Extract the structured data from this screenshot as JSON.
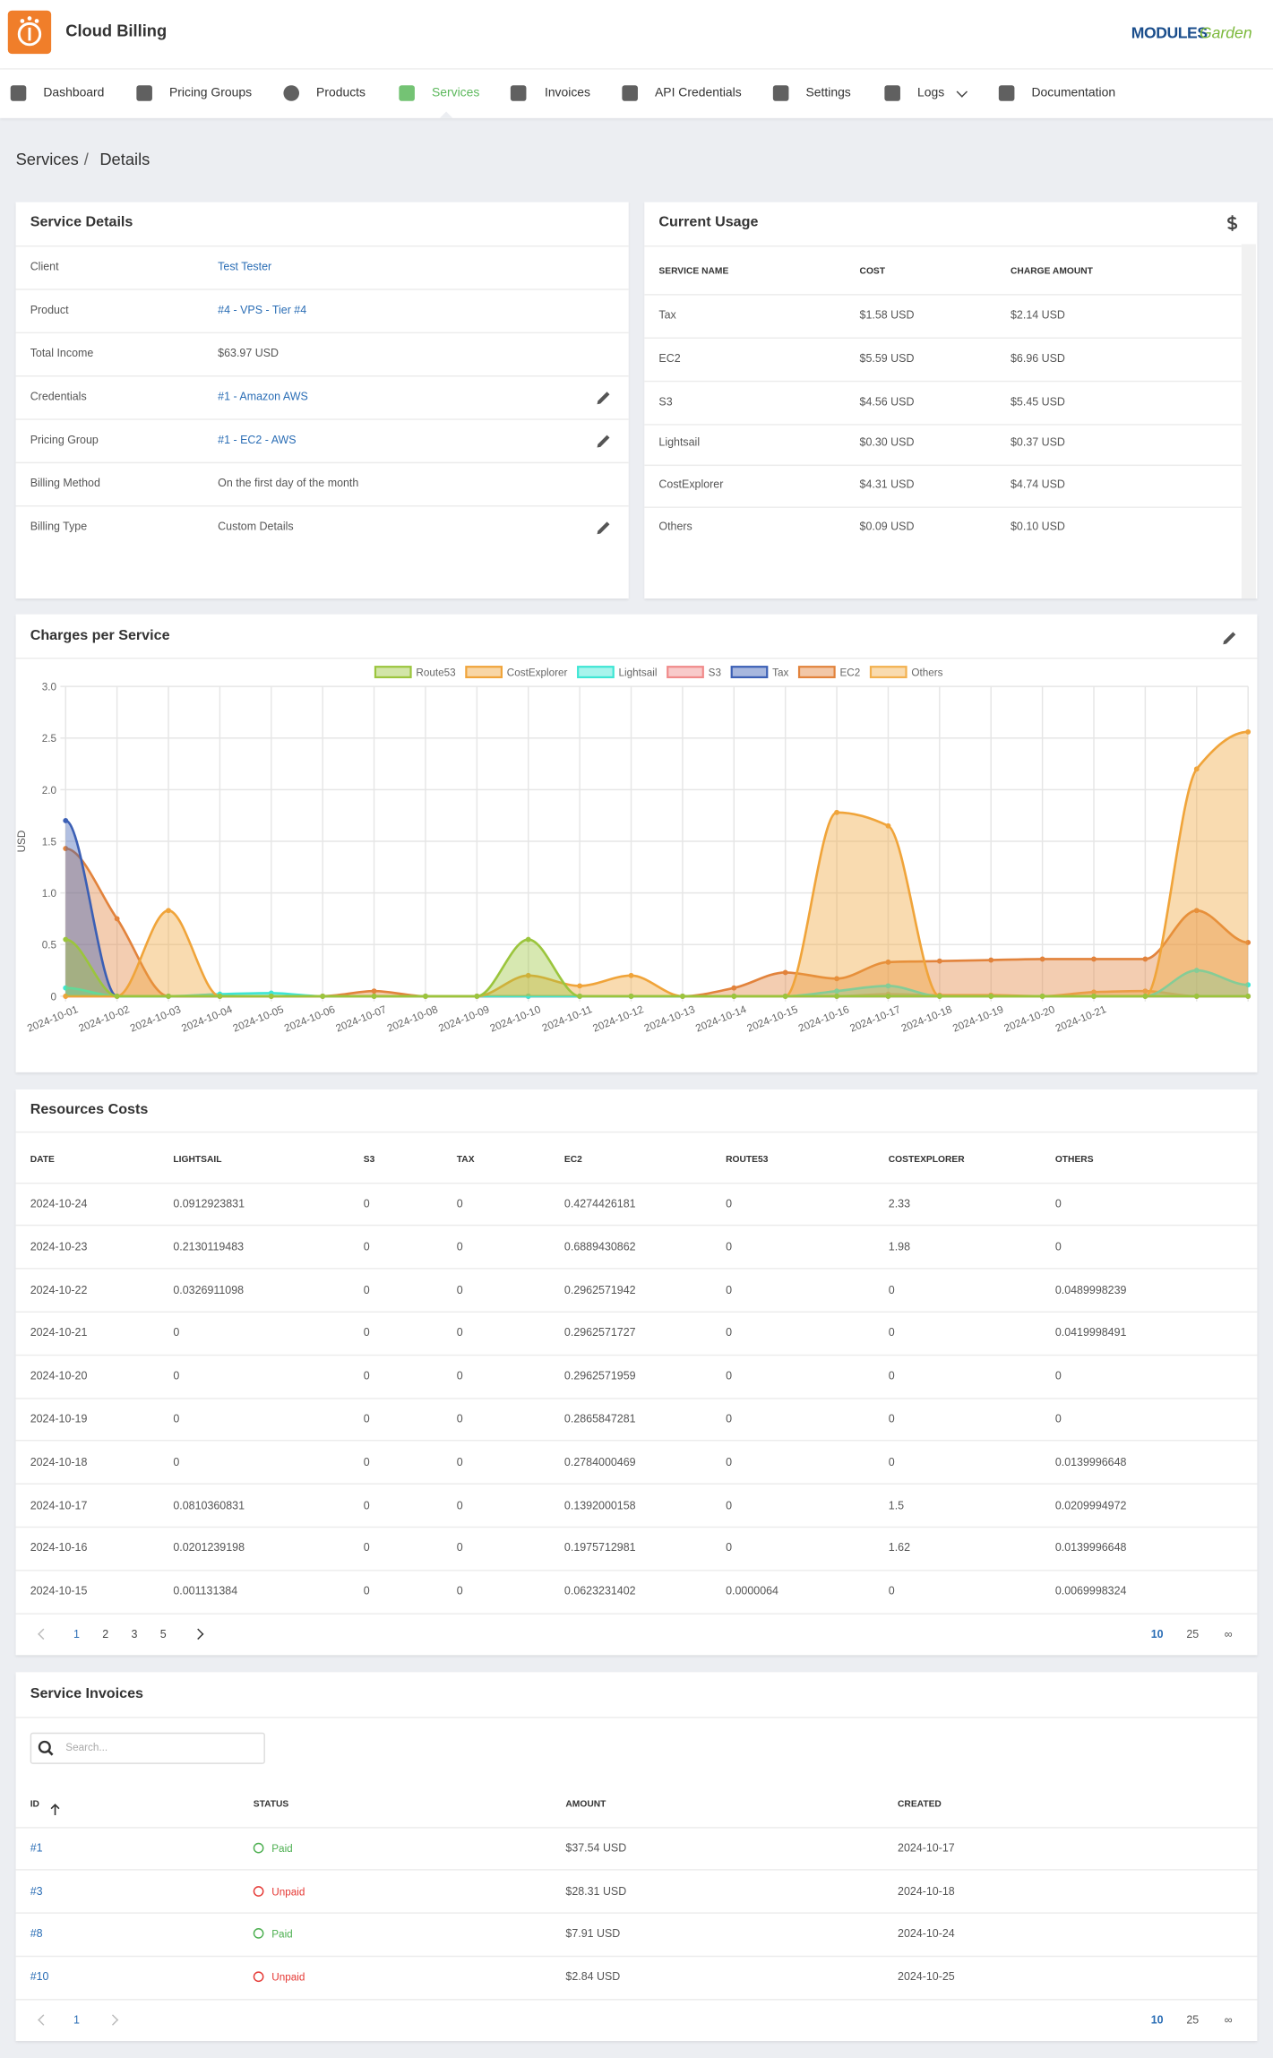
{
  "header": {
    "title": "Cloud Billing",
    "brand": [
      "MODULES",
      "Garden"
    ]
  },
  "nav": {
    "items": [
      "Dashboard",
      "Pricing Groups",
      "Products",
      "Services",
      "Invoices",
      "API Credentials",
      "Settings",
      "Logs",
      "Documentation"
    ],
    "active": 3
  },
  "breadcrumb": {
    "items": [
      "Services",
      "Details"
    ],
    "separator": "/"
  },
  "service_details": {
    "title": "Service Details",
    "rows": [
      [
        "Client",
        "Test Tester"
      ],
      [
        "Product",
        "#4 - VPS - Tier #4"
      ],
      [
        "Total Income",
        "$63.97 USD"
      ],
      [
        "Credentials",
        "#1 - Amazon AWS"
      ],
      [
        "Pricing Group",
        "#1 - EC2 - AWS"
      ],
      [
        "Billing Method",
        "On the first day of the month"
      ],
      [
        "Billing Type",
        "Custom Details"
      ]
    ]
  },
  "current_usage": {
    "title": "Current Usage",
    "columns": [
      "SERVICE NAME",
      "COST",
      "CHARGE AMOUNT"
    ],
    "rows": [
      [
        "Tax",
        "$1.58 USD",
        "$2.14 USD"
      ],
      [
        "EC2",
        "$5.59 USD",
        "$6.96 USD"
      ],
      [
        "S3",
        "$4.56 USD",
        "$5.45 USD"
      ],
      [
        "Lightsail",
        "$0.30 USD",
        "$0.37 USD"
      ],
      [
        "CostExplorer",
        "$4.31 USD",
        "$4.74 USD"
      ],
      [
        "Others",
        "$0.09 USD",
        "$0.10 USD"
      ]
    ]
  },
  "chart_data": {
    "type": "area",
    "title": "Charges per Service",
    "y_label": "USD",
    "categories": [
      "2024-10-01",
      "2024-10-02",
      "2024-10-03",
      "2024-10-04",
      "2024-10-05",
      "2024-10-06",
      "2024-10-07",
      "2024-10-08",
      "2024-10-09",
      "2024-10-10",
      "2024-10-11",
      "2024-10-12",
      "2024-10-13",
      "2024-10-14",
      "2024-10-15",
      "2024-10-16",
      "2024-10-17",
      "2024-10-18",
      "2024-10-19",
      "2024-10-20",
      "2024-10-21",
      null,
      null,
      null
    ],
    "series": [
      {
        "name": "Route53",
        "color": "#9bc53d",
        "values": [
          0.55,
          0,
          0,
          0,
          0,
          0,
          0,
          0,
          0,
          0.55,
          0,
          0,
          0,
          0,
          0,
          0,
          0,
          0,
          0,
          0,
          0,
          0,
          0,
          0
        ]
      },
      {
        "name": "CostExplorer",
        "color": "#f0a43a",
        "values": [
          0,
          0,
          0.83,
          0,
          0,
          0,
          0,
          0,
          0,
          0.2,
          0.1,
          0.2,
          0,
          0,
          0,
          1.78,
          1.65,
          0,
          0,
          0,
          0,
          0,
          2.2,
          2.56
        ]
      },
      {
        "name": "Lightsail",
        "color": "#3ee6d4",
        "values": [
          0.08,
          0,
          0,
          0.02,
          0.03,
          0,
          0,
          0,
          0,
          0,
          0,
          0,
          0,
          0,
          0,
          0.05,
          0.1,
          0,
          0,
          0,
          0,
          0,
          0.25,
          0.11
        ]
      },
      {
        "name": "S3",
        "color": "#f08a8a",
        "values": [
          0,
          0,
          0,
          0,
          0,
          0,
          0,
          0,
          0,
          0,
          0,
          0,
          0,
          0,
          0,
          0,
          0,
          0,
          0,
          0,
          0,
          0,
          0,
          0
        ]
      },
      {
        "name": "Tax",
        "color": "#3b5fb5",
        "values": [
          1.7,
          0,
          0,
          0,
          0,
          0,
          0,
          0,
          0,
          0,
          0,
          0,
          0,
          0,
          0,
          0,
          0,
          0,
          0,
          0,
          0,
          0,
          0,
          0
        ]
      },
      {
        "name": "EC2",
        "color": "#e2833c",
        "values": [
          1.43,
          0.75,
          0,
          0,
          0,
          0,
          0.05,
          0,
          0,
          0,
          0,
          0,
          0,
          0.08,
          0.23,
          0.17,
          0.33,
          0.34,
          0.35,
          0.36,
          0.36,
          0.36,
          0.83,
          0.52
        ]
      },
      {
        "name": "Others",
        "color": "#f2b04e",
        "values": [
          0,
          0,
          0,
          0,
          0,
          0,
          0,
          0,
          0,
          0,
          0,
          0,
          0,
          0,
          0,
          0,
          0.02,
          0.01,
          0.01,
          0,
          0.04,
          0.05,
          0,
          0
        ]
      }
    ],
    "ylim": [
      0,
      3
    ],
    "yticks": [
      0,
      0.5,
      {
        "value": 1,
        "label": "1.0"
      },
      1.5,
      {
        "value": 2,
        "label": "2.0"
      },
      2.5,
      {
        "value": 3,
        "label": "3.0"
      }
    ],
    "grid": true,
    "legend": "top"
  },
  "resources_costs": {
    "title": "Resources Costs",
    "columns": [
      "DATE",
      "LIGHTSAIL",
      "S3",
      "TAX",
      "EC2",
      "ROUTE53",
      "COSTEXPLORER",
      "OTHERS"
    ],
    "rows": [
      [
        "2024-10-24",
        "0.0912923831",
        "0",
        "0",
        "0.4274426181",
        "0",
        "2.33",
        "0"
      ],
      [
        "2024-10-23",
        "0.2130119483",
        "0",
        "0",
        "0.6889430862",
        "0",
        "1.98",
        "0"
      ],
      [
        "2024-10-22",
        "0.0326911098",
        "0",
        "0",
        "0.2962571942",
        "0",
        "0",
        "0.0489998239"
      ],
      [
        "2024-10-21",
        "0",
        "0",
        "0",
        "0.2962571727",
        "0",
        "0",
        "0.0419998491"
      ],
      [
        "2024-10-20",
        "0",
        "0",
        "0",
        "0.2962571959",
        "0",
        "0",
        "0"
      ],
      [
        "2024-10-19",
        "0",
        "0",
        "0",
        "0.2865847281",
        "0",
        "0",
        "0"
      ],
      [
        "2024-10-18",
        "0",
        "0",
        "0",
        "0.2784000469",
        "0",
        "0",
        "0.0139996648"
      ],
      [
        "2024-10-17",
        "0.0810360831",
        "0",
        "0",
        "0.1392000158",
        "0",
        "1.5",
        "0.0209994972"
      ],
      [
        "2024-10-16",
        "0.0201239198",
        "0",
        "0",
        "0.1975712981",
        "0",
        "1.62",
        "0.0139996648"
      ],
      [
        "2024-10-15",
        "0.001131384",
        "0",
        "0",
        "0.0623231402",
        "0.0000064",
        "0",
        "0.0069998324"
      ]
    ],
    "pagination": {
      "pages": [
        "1",
        "2",
        "3",
        "5"
      ],
      "page_sizes": [
        "10",
        "25",
        "∞"
      ]
    }
  },
  "service_invoices": {
    "title": "Service Invoices",
    "search_placeholder": "Search...",
    "columns": [
      "ID",
      "STATUS",
      "AMOUNT",
      "CREATED"
    ],
    "rows": [
      [
        "#1",
        "Paid",
        "$37.54 USD",
        "2024-10-17"
      ],
      [
        "#3",
        "Unpaid",
        "$28.31 USD",
        "2024-10-18"
      ],
      [
        "#8",
        "Paid",
        "$7.91 USD",
        "2024-10-24"
      ],
      [
        "#10",
        "Unpaid",
        "$2.84 USD",
        "2024-10-25"
      ]
    ],
    "pagination": {
      "pages": [
        "1"
      ],
      "page_sizes": [
        "10",
        "25",
        "∞"
      ]
    }
  }
}
